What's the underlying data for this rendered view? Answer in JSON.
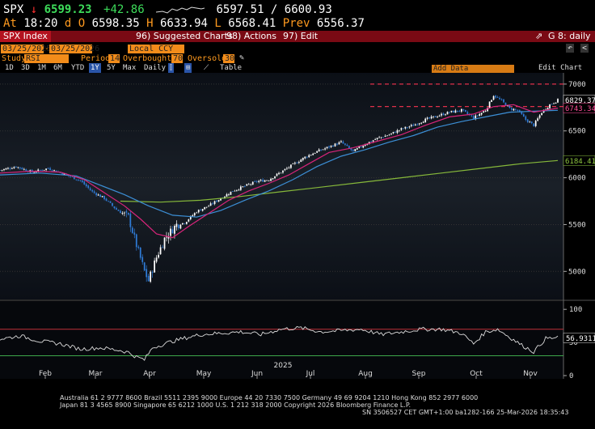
{
  "header": {
    "ticker": "SPX",
    "last": "6599.23",
    "change": "+42.86",
    "bid_ask": "6597.51 / 6600.93",
    "at_label": "At",
    "time": "18:20",
    "d_label": "d",
    "o_label": "O",
    "open": "6598.35",
    "h_label": "H",
    "high": "6633.94",
    "l_label": "L",
    "low": "6568.41",
    "prev_label": "Prev",
    "prev": "6556.37"
  },
  "toolbar": {
    "index_label": "SPX Index",
    "suggested_charts": "96) Suggested Charts",
    "actions": "98) Actions",
    "edit": "97) Edit",
    "chart_label": "G 8: daily"
  },
  "controls": {
    "start_date": "03/25/2025",
    "end_date": "03/25/2026",
    "currency": "Local CCY",
    "study_label": "Study",
    "study_value": "RSI",
    "period_label": "Period",
    "period_value": "14",
    "overbought_label": "Overbought",
    "overbought_value": "70",
    "oversold_label": "Oversold",
    "oversold_value": "30",
    "add_data": "Add Data",
    "edit_chart": "Edit Chart",
    "ranges": [
      "1D",
      "3D",
      "1M",
      "6M",
      "YTD",
      "1Y",
      "5Y",
      "Max"
    ],
    "selected_range": "1Y",
    "frequency": "Daily",
    "table_label": "Table"
  },
  "chart_data": {
    "type": "candlestick",
    "y_ticks": [
      5000,
      5500,
      6000,
      6500,
      7000
    ],
    "ylim": [
      4700,
      7120
    ],
    "x_labels": [
      "Feb",
      "Mar",
      "Apr",
      "May",
      "Jun",
      "Jul",
      "Aug",
      "Sep",
      "Oct",
      "Nov"
    ],
    "year_label": "2025",
    "price_tags": [
      {
        "value": "6829.37",
        "color": "#ffffff"
      },
      {
        "value": "6743.34",
        "color": "#ff4f9a"
      },
      {
        "value": "6184.41",
        "color": "#8dc63f"
      }
    ],
    "resistance_levels": [
      7000,
      6760
    ],
    "close_path": [
      [
        0,
        6080
      ],
      [
        8,
        6120
      ],
      [
        16,
        6060
      ],
      [
        24,
        6100
      ],
      [
        32,
        6040
      ],
      [
        40,
        5970
      ],
      [
        46,
        5850
      ],
      [
        52,
        5780
      ],
      [
        58,
        5660
      ],
      [
        64,
        5580
      ],
      [
        68,
        5280
      ],
      [
        72,
        5000
      ],
      [
        74,
        4900
      ],
      [
        78,
        5150
      ],
      [
        82,
        5350
      ],
      [
        88,
        5500
      ],
      [
        92,
        5520
      ],
      [
        98,
        5640
      ],
      [
        104,
        5700
      ],
      [
        110,
        5780
      ],
      [
        116,
        5860
      ],
      [
        122,
        5910
      ],
      [
        128,
        5960
      ],
      [
        134,
        5980
      ],
      [
        140,
        6060
      ],
      [
        146,
        6140
      ],
      [
        152,
        6220
      ],
      [
        158,
        6280
      ],
      [
        164,
        6330
      ],
      [
        170,
        6380
      ],
      [
        176,
        6280
      ],
      [
        182,
        6360
      ],
      [
        188,
        6420
      ],
      [
        194,
        6460
      ],
      [
        200,
        6520
      ],
      [
        206,
        6560
      ],
      [
        212,
        6620
      ],
      [
        218,
        6660
      ],
      [
        224,
        6700
      ],
      [
        230,
        6720
      ],
      [
        236,
        6640
      ],
      [
        242,
        6720
      ],
      [
        246,
        6880
      ],
      [
        250,
        6820
      ],
      [
        254,
        6740
      ],
      [
        258,
        6720
      ],
      [
        262,
        6620
      ],
      [
        266,
        6560
      ],
      [
        270,
        6700
      ],
      [
        274,
        6780
      ],
      [
        278,
        6829
      ]
    ],
    "ma_20": [
      [
        0,
        6050
      ],
      [
        16,
        6070
      ],
      [
        30,
        6060
      ],
      [
        42,
        5980
      ],
      [
        52,
        5840
      ],
      [
        62,
        5700
      ],
      [
        70,
        5560
      ],
      [
        78,
        5400
      ],
      [
        86,
        5360
      ],
      [
        94,
        5480
      ],
      [
        104,
        5620
      ],
      [
        114,
        5760
      ],
      [
        124,
        5860
      ],
      [
        134,
        5940
      ],
      [
        144,
        6030
      ],
      [
        154,
        6150
      ],
      [
        164,
        6270
      ],
      [
        176,
        6320
      ],
      [
        188,
        6390
      ],
      [
        200,
        6460
      ],
      [
        212,
        6560
      ],
      [
        224,
        6650
      ],
      [
        236,
        6680
      ],
      [
        246,
        6760
      ],
      [
        256,
        6780
      ],
      [
        266,
        6700
      ],
      [
        278,
        6743
      ]
    ],
    "ma_50": [
      [
        0,
        6030
      ],
      [
        20,
        6050
      ],
      [
        38,
        6020
      ],
      [
        50,
        5920
      ],
      [
        62,
        5820
      ],
      [
        74,
        5700
      ],
      [
        86,
        5600
      ],
      [
        98,
        5580
      ],
      [
        110,
        5650
      ],
      [
        122,
        5760
      ],
      [
        134,
        5860
      ],
      [
        146,
        5980
      ],
      [
        158,
        6120
      ],
      [
        170,
        6230
      ],
      [
        182,
        6300
      ],
      [
        194,
        6380
      ],
      [
        206,
        6450
      ],
      [
        218,
        6540
      ],
      [
        230,
        6600
      ],
      [
        242,
        6650
      ],
      [
        254,
        6700
      ],
      [
        266,
        6710
      ],
      [
        278,
        6720
      ]
    ],
    "ma_200": [
      [
        60,
        5750
      ],
      [
        80,
        5740
      ],
      [
        100,
        5760
      ],
      [
        120,
        5800
      ],
      [
        140,
        5850
      ],
      [
        160,
        5900
      ],
      [
        180,
        5950
      ],
      [
        200,
        6000
      ],
      [
        220,
        6050
      ],
      [
        240,
        6100
      ],
      [
        260,
        6150
      ],
      [
        278,
        6184
      ]
    ],
    "rsi": {
      "ticks": [
        0,
        50,
        100
      ],
      "ylim": [
        0,
        110
      ],
      "overbought": 70,
      "oversold": 30,
      "value_label": "56.9311",
      "path": [
        [
          0,
          55
        ],
        [
          10,
          60
        ],
        [
          20,
          52
        ],
        [
          30,
          48
        ],
        [
          40,
          40
        ],
        [
          50,
          42
        ],
        [
          60,
          38
        ],
        [
          64,
          35
        ],
        [
          68,
          28
        ],
        [
          72,
          24
        ],
        [
          76,
          42
        ],
        [
          84,
          50
        ],
        [
          90,
          55
        ],
        [
          100,
          62
        ],
        [
          110,
          64
        ],
        [
          120,
          66
        ],
        [
          130,
          62
        ],
        [
          140,
          70
        ],
        [
          150,
          72
        ],
        [
          160,
          66
        ],
        [
          170,
          68
        ],
        [
          180,
          70
        ],
        [
          190,
          62
        ],
        [
          200,
          66
        ],
        [
          210,
          70
        ],
        [
          220,
          70
        ],
        [
          230,
          64
        ],
        [
          236,
          48
        ],
        [
          242,
          66
        ],
        [
          248,
          70
        ],
        [
          254,
          58
        ],
        [
          260,
          46
        ],
        [
          266,
          36
        ],
        [
          272,
          56
        ],
        [
          278,
          57
        ]
      ]
    }
  },
  "footer": {
    "line1": "Australia 61 2 9777 8600 Brazil 5511 2395 9000 Europe 44 20 7330 7500 Germany 49 69 9204 1210 Hong Kong 852 2977 6000",
    "line2": "Japan 81 3 4565 8900         Singapore 65 6212 1000         U.S. 1 212 318 2000         Copyright 2026 Bloomberg Finance L.P.",
    "line3": "SN 3506527 CET  GMT+1:00 ba1282-166 25-Mar-2026 18:35:43"
  },
  "colors": {
    "candle_up": "#ffffff",
    "candle_down": "#2f7bd6",
    "ma_20": "#d8247a",
    "ma_50": "#3c8fd6",
    "ma_200": "#86b83a",
    "resistance": "#e0304a",
    "rsi": "#dcdcdc",
    "overbought_line": "#c0303a",
    "oversold_line": "#3ea84a"
  }
}
